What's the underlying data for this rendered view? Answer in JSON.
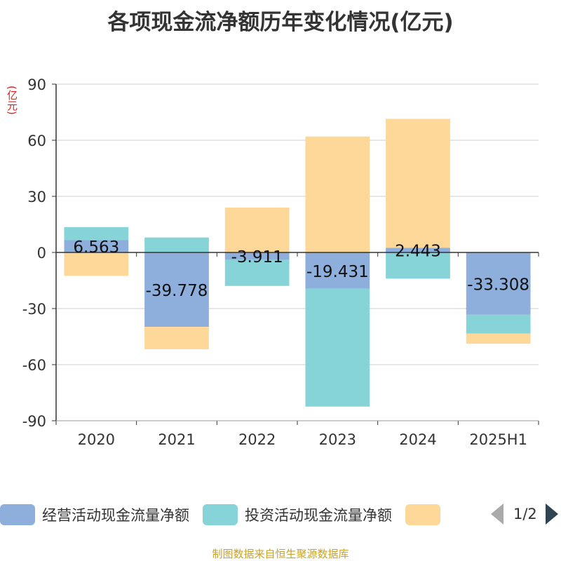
{
  "title": "各项现金流净额历年变化情况(亿元)",
  "unit_label": "(亿元)",
  "source": "制图数据来自恒生聚源数据库",
  "pager": {
    "text": "1/2"
  },
  "legend": [
    {
      "name": "经营活动现金流量净额",
      "color": "#8eaedb"
    },
    {
      "name": "投资活动现金流量净额",
      "color": "#87d4d8"
    },
    {
      "name": "",
      "color": "#fdd899"
    }
  ],
  "chart_data": {
    "type": "bar",
    "stacked": true,
    "categories": [
      "2020",
      "2021",
      "2022",
      "2023",
      "2024",
      "2025H1"
    ],
    "ylim": [
      -90,
      90
    ],
    "yticks": [
      90,
      60,
      30,
      0,
      -30,
      -60,
      -90
    ],
    "grid": true,
    "legend_position": "bottom",
    "series": [
      {
        "name": "经营活动现金流量净额",
        "color": "#8eaedb",
        "values": [
          6.563,
          -39.778,
          -3.911,
          -19.431,
          2.443,
          -33.308
        ],
        "labels": [
          "6.563",
          "-39.778",
          "-3.911",
          "-19.431",
          "2.443",
          "-33.308"
        ]
      },
      {
        "name": "投资活动现金流量净额",
        "color": "#87d4d8",
        "values": [
          7.0,
          8.0,
          -14.0,
          -63.0,
          -14.0,
          -10.0
        ]
      },
      {
        "name": "",
        "color": "#fdd899",
        "values": [
          -12.5,
          -12.0,
          24.0,
          62.0,
          69.0,
          -5.5
        ]
      }
    ]
  }
}
